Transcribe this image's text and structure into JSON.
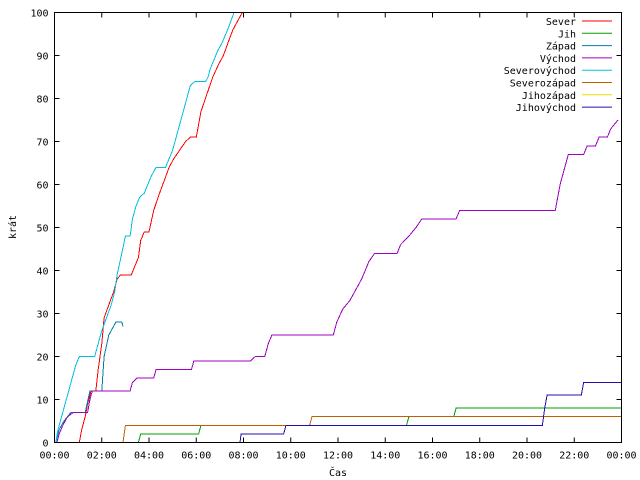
{
  "chart_data": {
    "type": "line",
    "title": "",
    "xlabel": "Čas",
    "ylabel": "krát",
    "xlim": [
      0,
      24
    ],
    "ylim": [
      0,
      100
    ],
    "x_tick_values": [
      0,
      2,
      4,
      6,
      8,
      10,
      12,
      14,
      16,
      18,
      20,
      22,
      24
    ],
    "x_tick_labels": [
      "00:00",
      "02:00",
      "04:00",
      "06:00",
      "08:00",
      "10:00",
      "12:00",
      "14:00",
      "16:00",
      "18:00",
      "20:00",
      "22:00",
      "00:00"
    ],
    "y_tick_values": [
      0,
      10,
      20,
      30,
      40,
      50,
      60,
      70,
      80,
      90,
      100
    ],
    "y_tick_labels": [
      "0",
      "10",
      "20",
      "30",
      "40",
      "50",
      "60",
      "70",
      "80",
      "90",
      "100"
    ],
    "legend_position": "top-right",
    "grid": false,
    "series": [
      {
        "name": "Sever",
        "color": "#ff0000",
        "points": [
          [
            1.05,
            0
          ],
          [
            1.15,
            3
          ],
          [
            1.3,
            6
          ],
          [
            1.4,
            9
          ],
          [
            1.55,
            12
          ],
          [
            1.75,
            12
          ],
          [
            1.85,
            17
          ],
          [
            2.0,
            23
          ],
          [
            2.1,
            29
          ],
          [
            2.3,
            32
          ],
          [
            2.5,
            35
          ],
          [
            2.65,
            38
          ],
          [
            2.8,
            39
          ],
          [
            3.25,
            39
          ],
          [
            3.4,
            41
          ],
          [
            3.55,
            43
          ],
          [
            3.65,
            47
          ],
          [
            3.8,
            49
          ],
          [
            4.0,
            49
          ],
          [
            4.2,
            54
          ],
          [
            4.45,
            58
          ],
          [
            4.65,
            61
          ],
          [
            4.85,
            64
          ],
          [
            5.05,
            66
          ],
          [
            5.3,
            68
          ],
          [
            5.55,
            70
          ],
          [
            5.75,
            71
          ],
          [
            6.0,
            71
          ],
          [
            6.2,
            77
          ],
          [
            6.45,
            81
          ],
          [
            6.7,
            85
          ],
          [
            6.95,
            88
          ],
          [
            7.15,
            90
          ],
          [
            7.35,
            93
          ],
          [
            7.55,
            96
          ],
          [
            7.75,
            98
          ],
          [
            7.95,
            100
          ]
        ]
      },
      {
        "name": "Jih",
        "color": "#00a000",
        "points": [
          [
            3.55,
            0
          ],
          [
            3.65,
            2
          ],
          [
            6.1,
            2
          ],
          [
            6.2,
            4
          ],
          [
            14.9,
            4
          ],
          [
            15.0,
            6
          ],
          [
            16.9,
            6
          ],
          [
            17.0,
            8
          ],
          [
            24,
            8
          ]
        ]
      },
      {
        "name": "Západ",
        "color": "#0080a0",
        "points": [
          [
            0.05,
            0
          ],
          [
            0.2,
            3
          ],
          [
            0.4,
            5
          ],
          [
            0.7,
            7
          ],
          [
            1.3,
            7
          ],
          [
            1.5,
            12
          ],
          [
            2.0,
            12
          ],
          [
            2.1,
            20
          ],
          [
            2.3,
            25
          ],
          [
            2.6,
            28
          ],
          [
            2.85,
            28
          ],
          [
            2.9,
            27
          ]
        ]
      },
      {
        "name": "Východ",
        "color": "#a000c0",
        "points": [
          [
            0.1,
            0
          ],
          [
            0.2,
            2
          ],
          [
            0.35,
            4
          ],
          [
            0.55,
            6
          ],
          [
            0.8,
            7
          ],
          [
            1.4,
            7
          ],
          [
            1.5,
            10
          ],
          [
            1.6,
            12
          ],
          [
            3.2,
            12
          ],
          [
            3.3,
            14
          ],
          [
            3.5,
            15
          ],
          [
            4.2,
            15
          ],
          [
            4.3,
            17
          ],
          [
            5.8,
            17
          ],
          [
            5.9,
            19
          ],
          [
            8.3,
            19
          ],
          [
            8.5,
            20
          ],
          [
            8.9,
            20
          ],
          [
            9.05,
            23
          ],
          [
            9.2,
            25
          ],
          [
            11.8,
            25
          ],
          [
            11.95,
            28
          ],
          [
            12.2,
            31
          ],
          [
            12.5,
            33
          ],
          [
            12.8,
            36
          ],
          [
            13.0,
            38
          ],
          [
            13.15,
            40
          ],
          [
            13.3,
            42
          ],
          [
            13.55,
            44
          ],
          [
            14.5,
            44
          ],
          [
            14.65,
            46
          ],
          [
            15.0,
            48
          ],
          [
            15.3,
            50
          ],
          [
            15.55,
            52
          ],
          [
            17.0,
            52
          ],
          [
            17.15,
            54
          ],
          [
            21.2,
            54
          ],
          [
            21.3,
            57
          ],
          [
            21.4,
            60
          ],
          [
            21.55,
            63
          ],
          [
            21.75,
            67
          ],
          [
            22.4,
            67
          ],
          [
            22.55,
            69
          ],
          [
            22.9,
            69
          ],
          [
            23.05,
            71
          ],
          [
            23.4,
            71
          ],
          [
            23.55,
            73
          ],
          [
            23.85,
            75
          ]
        ]
      },
      {
        "name": "Severovýchod",
        "color": "#00c0e0",
        "points": [
          [
            0.05,
            0
          ],
          [
            0.15,
            3
          ],
          [
            0.3,
            6
          ],
          [
            0.45,
            9
          ],
          [
            0.6,
            12
          ],
          [
            0.75,
            15
          ],
          [
            0.9,
            18
          ],
          [
            1.05,
            20
          ],
          [
            1.7,
            20
          ],
          [
            1.85,
            23
          ],
          [
            2.0,
            26
          ],
          [
            2.2,
            29
          ],
          [
            2.4,
            32
          ],
          [
            2.55,
            35
          ],
          [
            2.65,
            39
          ],
          [
            2.85,
            44
          ],
          [
            3.0,
            48
          ],
          [
            3.2,
            48
          ],
          [
            3.3,
            52
          ],
          [
            3.45,
            55
          ],
          [
            3.6,
            57
          ],
          [
            3.8,
            58
          ],
          [
            3.95,
            60
          ],
          [
            4.1,
            62
          ],
          [
            4.3,
            64
          ],
          [
            4.7,
            64
          ],
          [
            4.85,
            66
          ],
          [
            5.0,
            68
          ],
          [
            5.15,
            71
          ],
          [
            5.3,
            74
          ],
          [
            5.45,
            77
          ],
          [
            5.6,
            80
          ],
          [
            5.75,
            83
          ],
          [
            5.95,
            84
          ],
          [
            6.4,
            84
          ],
          [
            6.5,
            85
          ],
          [
            6.6,
            87
          ],
          [
            6.75,
            89
          ],
          [
            6.9,
            91
          ],
          [
            7.1,
            93
          ],
          [
            7.25,
            95
          ],
          [
            7.4,
            97
          ],
          [
            7.6,
            100
          ]
        ]
      },
      {
        "name": "Severozápad",
        "color": "#c06000",
        "points": [
          [
            2.9,
            0
          ],
          [
            3.0,
            4
          ],
          [
            10.8,
            4
          ],
          [
            10.9,
            6
          ],
          [
            24,
            6
          ]
        ]
      },
      {
        "name": "Jihozápad",
        "color": "#e0e000",
        "points": []
      },
      {
        "name": "Jihovýchod",
        "color": "#2010b0",
        "points": [
          [
            7.85,
            0
          ],
          [
            7.9,
            2
          ],
          [
            9.7,
            2
          ],
          [
            9.8,
            4
          ],
          [
            20.65,
            4
          ],
          [
            20.75,
            8
          ],
          [
            20.85,
            11
          ],
          [
            22.3,
            11
          ],
          [
            22.4,
            14
          ],
          [
            24,
            14
          ]
        ]
      }
    ]
  }
}
